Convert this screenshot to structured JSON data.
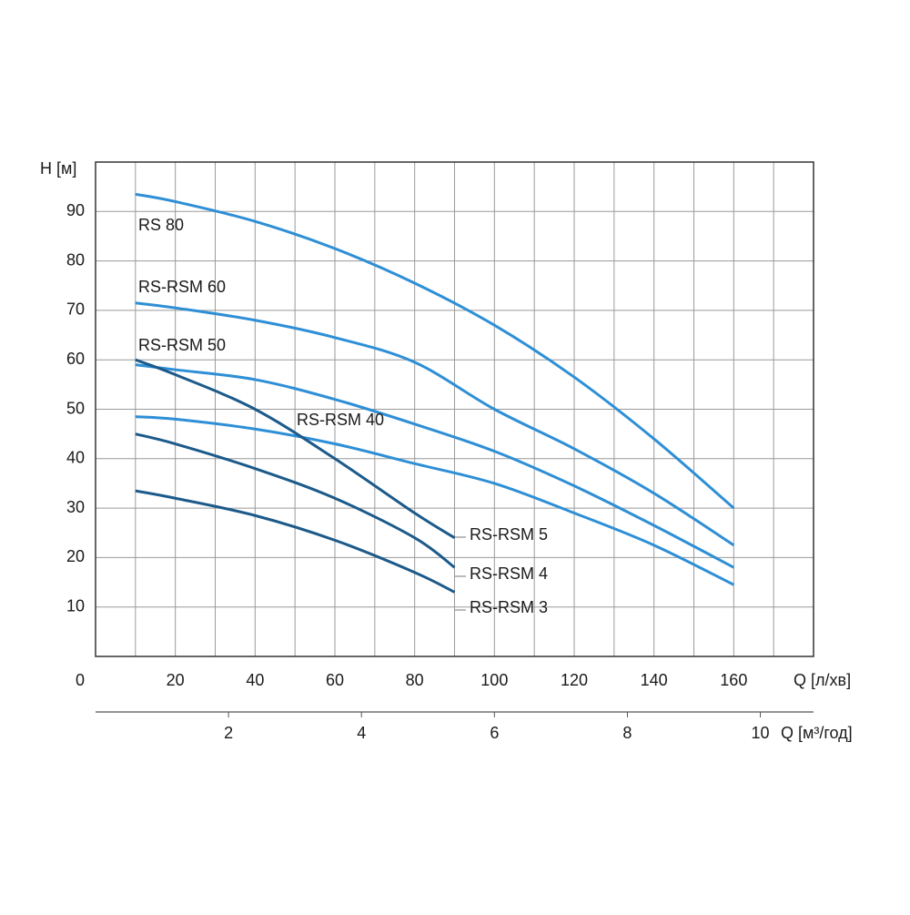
{
  "chart_data": {
    "type": "line",
    "ylabel": "H [м]",
    "xlabel": "Q [л/хв]",
    "x2label": "Q [м³/год]",
    "xlim": [
      0,
      180
    ],
    "xticks": [
      0,
      20,
      40,
      60,
      80,
      100,
      120,
      140,
      160
    ],
    "xgrid": [
      10,
      20,
      30,
      40,
      50,
      60,
      70,
      80,
      90,
      100,
      110,
      120,
      130,
      140,
      150,
      160,
      170
    ],
    "ylim": [
      0,
      100
    ],
    "yticks": [
      10,
      20,
      30,
      40,
      50,
      60,
      70,
      80,
      90
    ],
    "x2lim": [
      0,
      10.8
    ],
    "x2ticks": [
      2,
      4,
      6,
      8,
      10
    ],
    "grid": true,
    "series": [
      {
        "name": "RS 80",
        "color": "#2e8fd6",
        "x": [
          10,
          20,
          40,
          60,
          80,
          100,
          120,
          140,
          160
        ],
        "values": [
          93.5,
          92,
          88,
          82.5,
          75.5,
          67,
          56.5,
          44,
          30
        ]
      },
      {
        "name": "RS-RSM 60",
        "color": "#2e8fd6",
        "x": [
          10,
          20,
          40,
          60,
          80,
          100,
          120,
          140,
          160
        ],
        "values": [
          71.5,
          70.5,
          68,
          64.5,
          59.5,
          50,
          42,
          33,
          22.5
        ]
      },
      {
        "name": "RS-RSM 50",
        "color": "#2e8fd6",
        "x": [
          10,
          20,
          40,
          60,
          80,
          100,
          120,
          140,
          160
        ],
        "values": [
          59,
          58,
          56,
          52,
          47,
          41.5,
          34.5,
          26.5,
          18
        ]
      },
      {
        "name": "RS-RSM 40",
        "color": "#2e8fd6",
        "x": [
          10,
          20,
          40,
          60,
          80,
          100,
          120,
          140,
          160
        ],
        "values": [
          48.5,
          48,
          46,
          43,
          39,
          35,
          29,
          22.5,
          14.5
        ]
      },
      {
        "name": "RS-RSM 5",
        "color": "#1c5a8a",
        "x": [
          10,
          20,
          40,
          60,
          80,
          90
        ],
        "values": [
          60,
          57,
          50,
          40,
          29,
          24
        ]
      },
      {
        "name": "RS-RSM 4",
        "color": "#1c5a8a",
        "x": [
          10,
          20,
          40,
          60,
          80,
          90
        ],
        "values": [
          45,
          43,
          38,
          32,
          24,
          18
        ]
      },
      {
        "name": "RS-RSM 3",
        "color": "#1c5a8a",
        "x": [
          10,
          20,
          40,
          60,
          80,
          90
        ],
        "values": [
          33.5,
          32,
          28.5,
          23.5,
          17,
          13
        ]
      }
    ]
  }
}
